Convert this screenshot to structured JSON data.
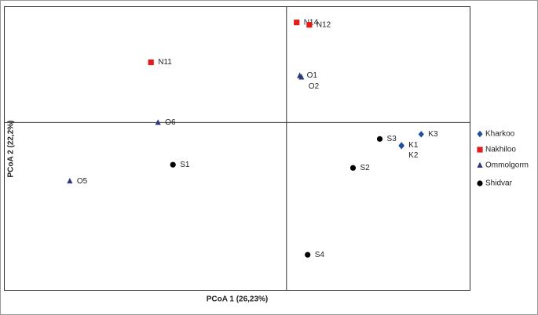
{
  "chart_data": {
    "type": "scatter",
    "xlabel": "PCoA 1 (26,23%)",
    "ylabel": "PCoA 2 (22,2%)",
    "xlim": [
      -1,
      0.65
    ],
    "ylim": [
      -1,
      0.69
    ],
    "legend": "right",
    "series": [
      {
        "name": "Kharkoo",
        "color": "#1f4e9c",
        "marker": "diamond",
        "labels": [
          "K3",
          "K1",
          "K2"
        ],
        "x": [
          0.478,
          0.408,
          0.408
        ],
        "values": [
          -0.07,
          -0.136,
          -0.14
        ]
      },
      {
        "name": "Nakhiloo",
        "color": "#e31b1b",
        "marker": "square",
        "labels": [
          "N14",
          "N12",
          "N11"
        ],
        "x": [
          0.036,
          0.081,
          -0.481
        ],
        "values": [
          0.598,
          0.584,
          0.36
        ]
      },
      {
        "name": "Ommolgorm",
        "color": "#2b3a7c",
        "marker": "triangle",
        "labels": [
          "O1",
          "O2",
          "O6",
          "O5"
        ],
        "x": [
          0.047,
          0.053,
          -0.456,
          -0.769
        ],
        "values": [
          0.28,
          0.271,
          0,
          -0.35
        ]
      },
      {
        "name": "Shidvar",
        "color": "#000000",
        "marker": "circle",
        "labels": [
          "S3",
          "S2",
          "S1",
          "S4"
        ],
        "x": [
          0.331,
          0.236,
          -0.403,
          0.075
        ],
        "values": [
          -0.098,
          -0.271,
          -0.252,
          -0.79
        ]
      }
    ]
  }
}
